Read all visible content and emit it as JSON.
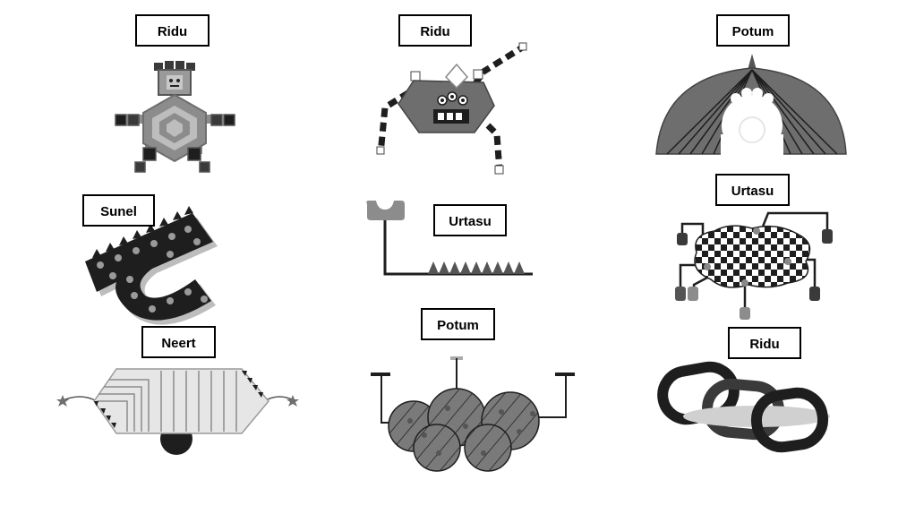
{
  "figures": [
    {
      "id": "f1",
      "label": "Ridu",
      "kind": "robot-turtle"
    },
    {
      "id": "f2",
      "label": "Ridu",
      "kind": "spider-creature"
    },
    {
      "id": "f3",
      "label": "Potum",
      "kind": "dome-umbrella"
    },
    {
      "id": "f4",
      "label": "Sunel",
      "kind": "spiked-hook"
    },
    {
      "id": "f5",
      "label": "Urtasu",
      "kind": "rail-with-spikes"
    },
    {
      "id": "f6",
      "label": "Urtasu",
      "kind": "checkered-blob"
    },
    {
      "id": "f7",
      "label": "Neert",
      "kind": "striped-cart"
    },
    {
      "id": "f8",
      "label": "Potum",
      "kind": "bubble-cluster"
    },
    {
      "id": "f9",
      "label": "Ridu",
      "kind": "chain-links"
    }
  ],
  "colors": {
    "dark": "#1e1e1e",
    "mid": "#6e6e6e",
    "midLight": "#8c8c8c",
    "light": "#bdbdbd",
    "pale": "#e6e6e6"
  }
}
